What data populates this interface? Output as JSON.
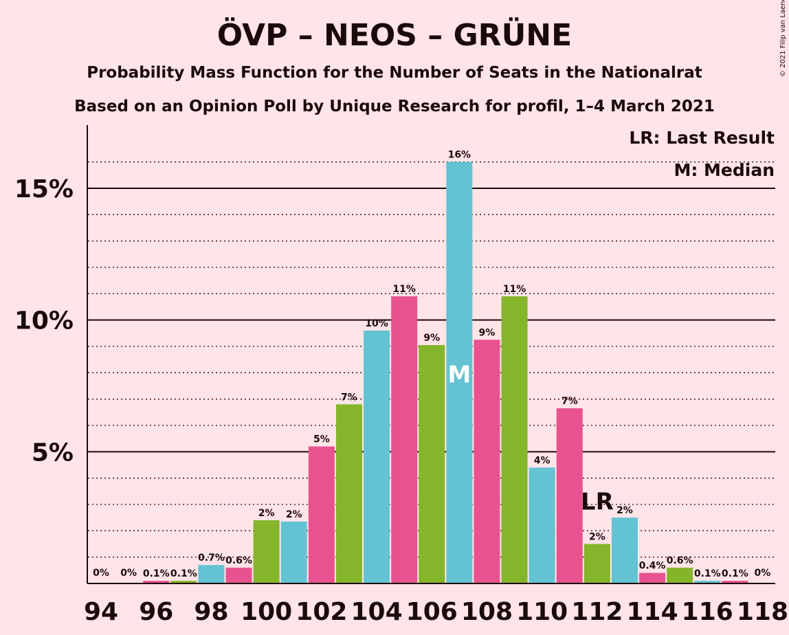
{
  "chart_data": {
    "type": "bar",
    "title": "ÖVP – NEOS – GRÜNE",
    "subtitle1": "Probability Mass Function for the Number of Seats in the Nationalrat",
    "subtitle2": "Based on an Opinion Poll by Unique Research for profil, 1–4 March 2021",
    "copyright": "© 2021 Filip van Laenen",
    "legend": {
      "lr": "LR: Last Result",
      "m": "M: Median"
    },
    "x": [
      94,
      95,
      96,
      97,
      98,
      99,
      100,
      101,
      102,
      103,
      104,
      105,
      106,
      107,
      108,
      109,
      110,
      111,
      112,
      113,
      114,
      115,
      116,
      117,
      118
    ],
    "values": [
      0,
      0,
      0.1,
      0.1,
      0.7,
      0.6,
      2.4,
      2.35,
      5.2,
      6.8,
      9.6,
      10.9,
      9.05,
      16.0,
      9.25,
      10.9,
      4.4,
      6.65,
      1.5,
      2.5,
      0.4,
      0.6,
      0.1,
      0.1,
      0
    ],
    "data_labels": [
      "0%",
      "0%",
      "0.1%",
      "0.1%",
      "0.7%",
      "0.6%",
      "2%",
      "2%",
      "5%",
      "7%",
      "10%",
      "11%",
      "9%",
      "16%",
      "9%",
      "11%",
      "4%",
      "7%",
      "2%",
      "2%",
      "0.4%",
      "0.6%",
      "0.1%",
      "0.1%",
      "0%"
    ],
    "colors": [
      "#E8528F",
      "#85B52B",
      "#63C3D2"
    ],
    "median_seat": 107,
    "median_marker": "M",
    "last_result_seat": 112,
    "last_result_marker": "LR",
    "x_tick_labels": [
      "94",
      "96",
      "98",
      "100",
      "102",
      "104",
      "106",
      "108",
      "110",
      "112",
      "114",
      "116",
      "118"
    ],
    "y_tick_labels": [
      "5%",
      "10%",
      "15%"
    ],
    "y_ticks": [
      5,
      10,
      15
    ],
    "ylim": [
      0,
      17.4
    ],
    "grid": true
  }
}
